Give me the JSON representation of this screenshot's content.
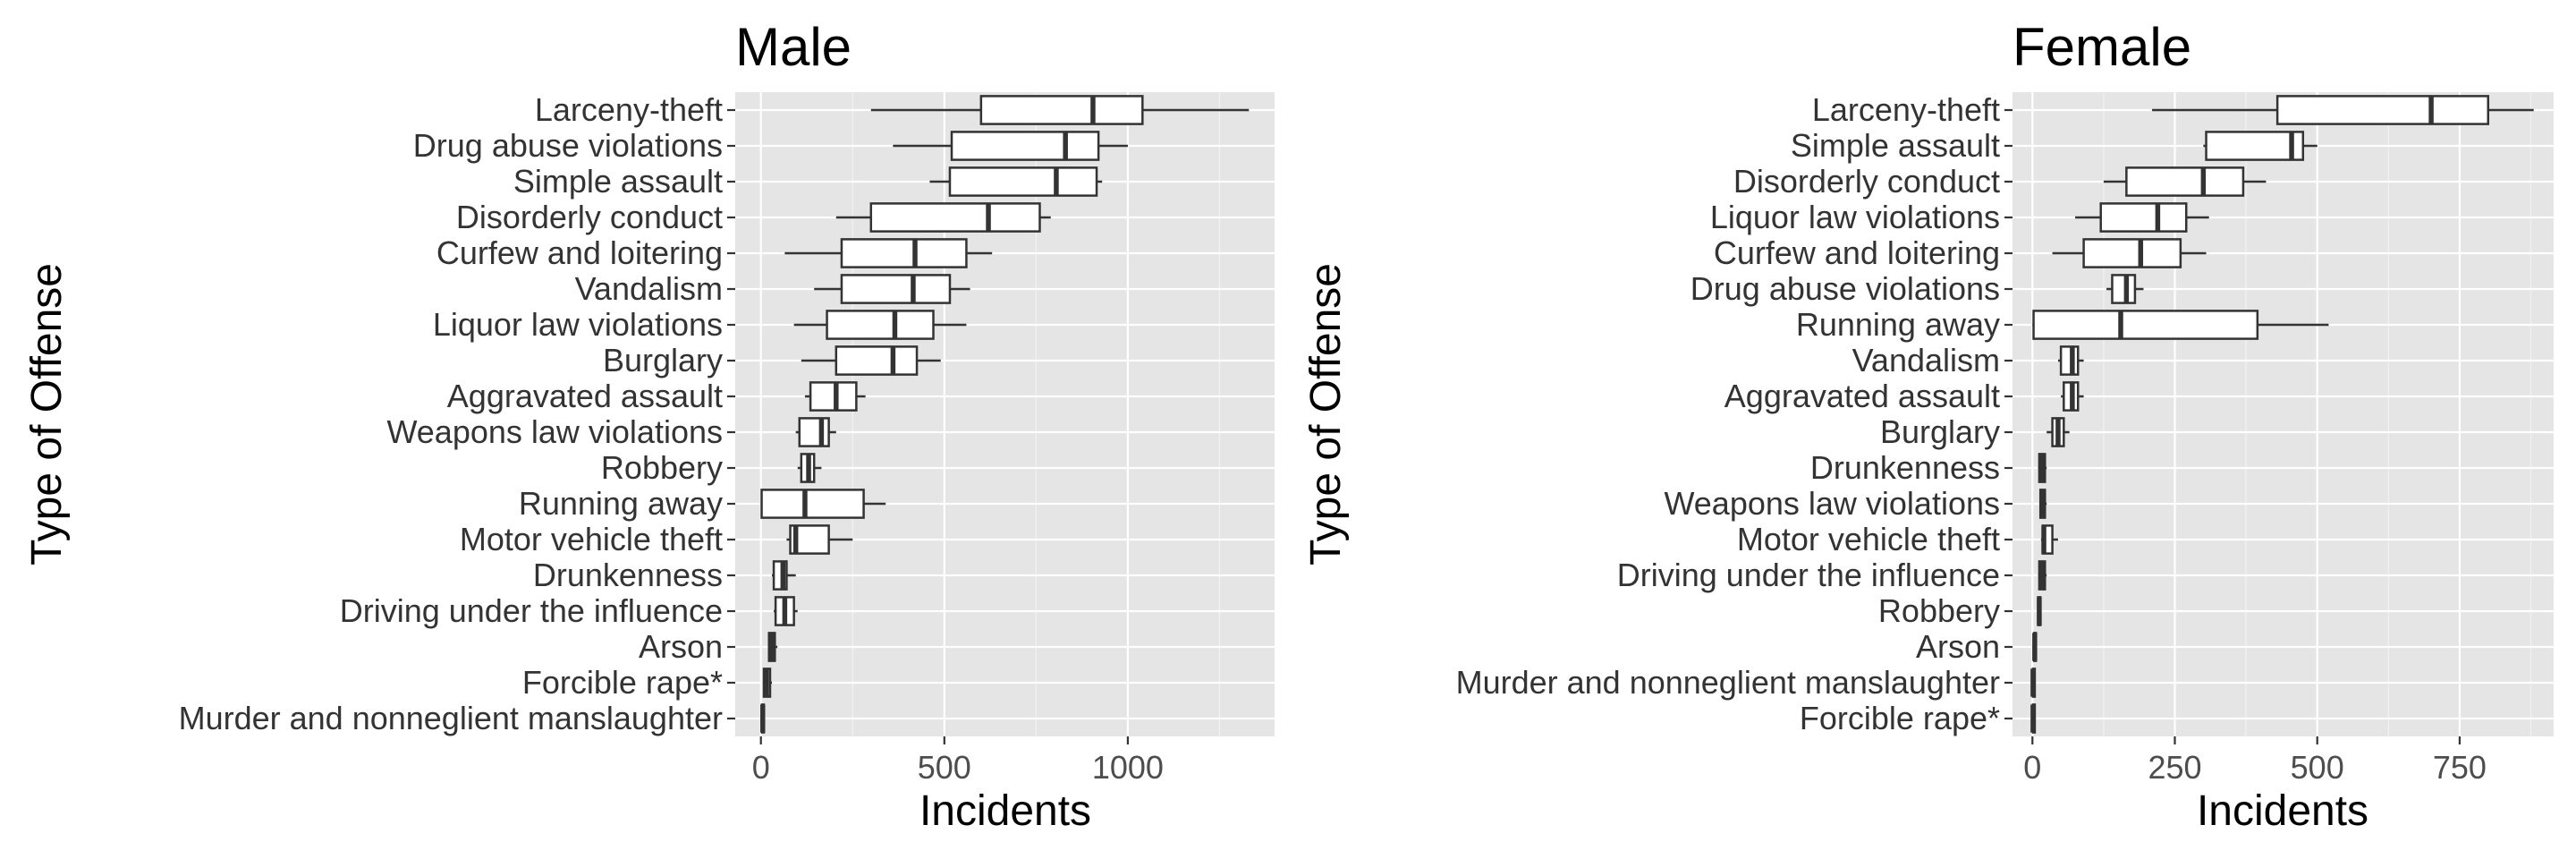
{
  "chart_data": [
    {
      "type": "boxplot",
      "orientation": "horizontal",
      "title": "Male",
      "xlabel": "Incidents",
      "ylabel": "Type of Offense",
      "xlim": [
        -70,
        1400
      ],
      "xticks": [
        0,
        500,
        1000
      ],
      "xtick_labels": [
        "0",
        "500",
        "1000"
      ],
      "grid": true,
      "categories": [
        {
          "name": "Larceny-theft",
          "min": 300,
          "q1": 600,
          "median": 905,
          "q3": 1040,
          "max": 1330
        },
        {
          "name": "Drug abuse violations",
          "min": 360,
          "q1": 520,
          "median": 830,
          "q3": 920,
          "max": 1000
        },
        {
          "name": "Simple assault",
          "min": 460,
          "q1": 515,
          "median": 805,
          "q3": 915,
          "max": 930
        },
        {
          "name": "Disorderly conduct",
          "min": 205,
          "q1": 300,
          "median": 620,
          "q3": 760,
          "max": 790
        },
        {
          "name": "Curfew and loitering",
          "min": 65,
          "q1": 220,
          "median": 420,
          "q3": 560,
          "max": 630
        },
        {
          "name": "Vandalism",
          "min": 145,
          "q1": 220,
          "median": 415,
          "q3": 515,
          "max": 570
        },
        {
          "name": "Liquor law violations",
          "min": 90,
          "q1": 180,
          "median": 365,
          "q3": 470,
          "max": 560
        },
        {
          "name": "Burglary",
          "min": 110,
          "q1": 205,
          "median": 360,
          "q3": 425,
          "max": 490
        },
        {
          "name": "Aggravated assault",
          "min": 120,
          "q1": 135,
          "median": 205,
          "q3": 260,
          "max": 285
        },
        {
          "name": "Weapons law violations",
          "min": 95,
          "q1": 105,
          "median": 165,
          "q3": 185,
          "max": 205
        },
        {
          "name": "Robbery",
          "min": 100,
          "q1": 110,
          "median": 130,
          "q3": 145,
          "max": 165
        },
        {
          "name": "Running away",
          "min": 0,
          "q1": 2,
          "median": 120,
          "q3": 280,
          "max": 340
        },
        {
          "name": "Motor vehicle theft",
          "min": 70,
          "q1": 80,
          "median": 95,
          "q3": 185,
          "max": 250
        },
        {
          "name": "Drunkenness",
          "min": 30,
          "q1": 35,
          "median": 60,
          "q3": 70,
          "max": 95
        },
        {
          "name": "Driving under the influence",
          "min": 35,
          "q1": 40,
          "median": 65,
          "q3": 90,
          "max": 100
        },
        {
          "name": "Arson",
          "min": 20,
          "q1": 22,
          "median": 30,
          "q3": 38,
          "max": 45
        },
        {
          "name": "Forcible rape*",
          "min": 5,
          "q1": 8,
          "median": 15,
          "q3": 25,
          "max": 30
        },
        {
          "name": "Murder and nonneglient manslaughter",
          "min": 2,
          "q1": 3,
          "median": 5,
          "q3": 8,
          "max": 10
        }
      ]
    },
    {
      "type": "boxplot",
      "orientation": "horizontal",
      "title": "Female",
      "xlabel": "Incidents",
      "ylabel": "Type of Offense",
      "xlim": [
        -35,
        915
      ],
      "xticks": [
        0,
        250,
        500,
        750
      ],
      "xtick_labels": [
        "0",
        "250",
        "500",
        "750"
      ],
      "grid": true,
      "categories": [
        {
          "name": "Larceny-theft",
          "min": 210,
          "q1": 430,
          "median": 700,
          "q3": 800,
          "max": 880
        },
        {
          "name": "Simple assault",
          "min": 300,
          "q1": 305,
          "median": 455,
          "q3": 475,
          "max": 500
        },
        {
          "name": "Disorderly conduct",
          "min": 125,
          "q1": 165,
          "median": 300,
          "q3": 370,
          "max": 410
        },
        {
          "name": "Liquor law violations",
          "min": 75,
          "q1": 120,
          "median": 220,
          "q3": 270,
          "max": 310
        },
        {
          "name": "Curfew and loitering",
          "min": 35,
          "q1": 90,
          "median": 190,
          "q3": 260,
          "max": 305
        },
        {
          "name": "Drug abuse violations",
          "min": 130,
          "q1": 140,
          "median": 165,
          "q3": 180,
          "max": 195
        },
        {
          "name": "Running away",
          "min": 0,
          "q1": 2,
          "median": 155,
          "q3": 395,
          "max": 520
        },
        {
          "name": "Vandalism",
          "min": 45,
          "q1": 50,
          "median": 70,
          "q3": 80,
          "max": 90
        },
        {
          "name": "Aggravated assault",
          "min": 50,
          "q1": 55,
          "median": 70,
          "q3": 80,
          "max": 90
        },
        {
          "name": "Burglary",
          "min": 25,
          "q1": 35,
          "median": 45,
          "q3": 55,
          "max": 65
        },
        {
          "name": "Drunkenness",
          "min": 10,
          "q1": 12,
          "median": 18,
          "q3": 22,
          "max": 25
        },
        {
          "name": "Weapons law violations",
          "min": 12,
          "q1": 14,
          "median": 18,
          "q3": 22,
          "max": 25
        },
        {
          "name": "Motor vehicle theft",
          "min": 15,
          "q1": 18,
          "median": 20,
          "q3": 35,
          "max": 45
        },
        {
          "name": "Driving under the influence",
          "min": 10,
          "q1": 12,
          "median": 18,
          "q3": 22,
          "max": 25
        },
        {
          "name": "Robbery",
          "min": 8,
          "q1": 10,
          "median": 12,
          "q3": 14,
          "max": 16
        },
        {
          "name": "Arson",
          "min": 2,
          "q1": 3,
          "median": 4,
          "q3": 5,
          "max": 6
        },
        {
          "name": "Murder and nonneglient manslaughter",
          "min": 0,
          "q1": 1,
          "median": 1,
          "q3": 1,
          "max": 2
        },
        {
          "name": "Forcible rape*",
          "min": 0,
          "q1": 1,
          "median": 1,
          "q3": 2,
          "max": 3
        }
      ]
    }
  ]
}
